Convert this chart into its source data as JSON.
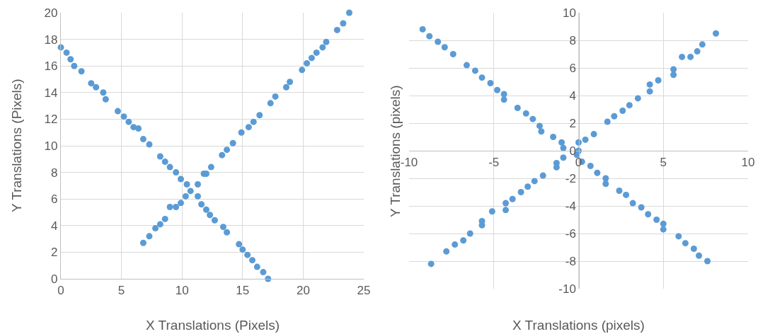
{
  "chart_data": [
    {
      "type": "scatter",
      "xlabel": "X Translations (Pixels)",
      "ylabel": "Y Translations (Pixels)",
      "xlim": [
        0,
        25
      ],
      "ylim": [
        0,
        20
      ],
      "xticks": [
        0,
        5,
        10,
        15,
        20,
        25
      ],
      "yticks": [
        0,
        2,
        4,
        6,
        8,
        10,
        12,
        14,
        16,
        18,
        20
      ],
      "grid": true,
      "marker": "circle",
      "series": [
        {
          "color": "#5b9bd5",
          "x": [
            0,
            0.47,
            0.8,
            1.1,
            1.7,
            2.5,
            2.9,
            3.5,
            3.7,
            4.7,
            5.2,
            5.6,
            6.0,
            6.4,
            6.8,
            7.3,
            8.2,
            8.6,
            9.0,
            9.5,
            9.9,
            10.4,
            10.7,
            11.3,
            11.6,
            12.0,
            12.3,
            12.7,
            13.4,
            13.7,
            14.7,
            15.0,
            15.4,
            15.8,
            16.2,
            16.7,
            17.1
          ],
          "values": [
            17.4,
            17.0,
            16.5,
            16.0,
            15.6,
            14.7,
            14.4,
            14.0,
            13.5,
            12.6,
            12.2,
            11.8,
            11.4,
            11.3,
            10.5,
            10.1,
            9.2,
            8.8,
            8.4,
            8.0,
            7.5,
            7.1,
            6.6,
            6.2,
            5.6,
            5.2,
            4.8,
            4.4,
            3.9,
            3.5,
            2.6,
            2.2,
            1.8,
            1.4,
            0.9,
            0.5,
            0.0
          ]
        },
        {
          "color": "#5b9bd5",
          "x": [
            6.8,
            7.3,
            7.8,
            8.2,
            8.6,
            9.0,
            9.5,
            9.9,
            10.3,
            10.7,
            11.3,
            11.8,
            12.0,
            12.4,
            13.3,
            13.7,
            14.2,
            14.9,
            15.5,
            15.9,
            16.4,
            17.3,
            17.7,
            18.6,
            18.9,
            19.9,
            20.3,
            20.7,
            21.1,
            21.6,
            21.9,
            22.8,
            23.3,
            23.8
          ],
          "values": [
            2.7,
            3.2,
            3.8,
            4.1,
            4.5,
            5.4,
            5.4,
            5.7,
            6.2,
            null,
            7.1,
            7.9,
            7.9,
            8.4,
            9.3,
            9.7,
            10.2,
            11.0,
            11.4,
            11.8,
            12.3,
            13.2,
            13.7,
            14.4,
            14.8,
            15.7,
            16.2,
            16.6,
            17.0,
            17.4,
            17.8,
            18.7,
            19.2,
            20.0
          ]
        }
      ]
    },
    {
      "type": "scatter",
      "xlabel": "X Translations (pixels)",
      "ylabel": "Y Translations (pixels)",
      "xlim": [
        -10,
        10
      ],
      "ylim": [
        -10,
        10
      ],
      "xticks": [
        -10,
        -5,
        0,
        5,
        10
      ],
      "yticks": [
        -10,
        -8,
        -6,
        -4,
        -2,
        0,
        2,
        4,
        6,
        8,
        10
      ],
      "grid": true,
      "marker": "circle",
      "series": [
        {
          "color": "#5b9bd5",
          "x": [
            -9.2,
            -8.8,
            -8.3,
            -7.9,
            -7.4,
            -6.6,
            -6.1,
            -5.7,
            -5.2,
            -4.8,
            -4.4,
            -4.4,
            -3.6,
            -3.1,
            -2.7,
            -2.3,
            -2.2,
            -1.5,
            -1.0,
            -0.9,
            -0.9,
            -0.1,
            0.2,
            0.7,
            1.1,
            1.6,
            1.6,
            2.4,
            2.8,
            3.2,
            3.7,
            4.1,
            4.6,
            5.0,
            5.0,
            5.9,
            6.3,
            6.8,
            7.1,
            7.6
          ],
          "values": [
            8.8,
            8.3,
            7.9,
            7.5,
            7.0,
            6.2,
            5.8,
            5.3,
            4.9,
            4.4,
            4.1,
            3.7,
            3.1,
            2.7,
            2.3,
            1.8,
            1.4,
            1.0,
            0.6,
            0.2,
            -0.5,
            -0.3,
            -0.8,
            -1.1,
            -1.6,
            -2.0,
            -2.4,
            -2.9,
            -3.2,
            -3.8,
            -4.1,
            -4.6,
            -5.0,
            -5.3,
            -5.7,
            -6.2,
            -6.7,
            -7.1,
            -7.6,
            -8.0
          ]
        },
        {
          "color": "#5b9bd5",
          "x": [
            -8.7,
            -7.8,
            -7.3,
            -6.8,
            -6.4,
            -5.7,
            -5.7,
            -5.1,
            -4.3,
            -4.3,
            -3.9,
            -3.4,
            -3.0,
            -2.6,
            -2.1,
            -1.3,
            -1.3,
            0.0,
            0.0,
            0.4,
            0.9,
            1.7,
            2.1,
            2.6,
            3.0,
            3.5,
            4.2,
            4.2,
            4.7,
            5.6,
            5.6,
            6.1,
            6.6,
            7.0,
            7.3,
            8.1
          ],
          "values": [
            -8.2,
            -7.3,
            -6.8,
            -6.5,
            -6.0,
            -5.1,
            -5.4,
            -4.4,
            -3.8,
            -4.3,
            -3.5,
            -3.0,
            -2.6,
            -2.2,
            -1.8,
            -1.2,
            -0.9,
            0.0,
            0.6,
            0.8,
            1.2,
            2.1,
            2.5,
            2.9,
            3.3,
            3.8,
            4.8,
            4.3,
            5.1,
            5.9,
            5.5,
            6.8,
            6.8,
            7.2,
            7.7,
            8.5
          ]
        }
      ]
    }
  ]
}
